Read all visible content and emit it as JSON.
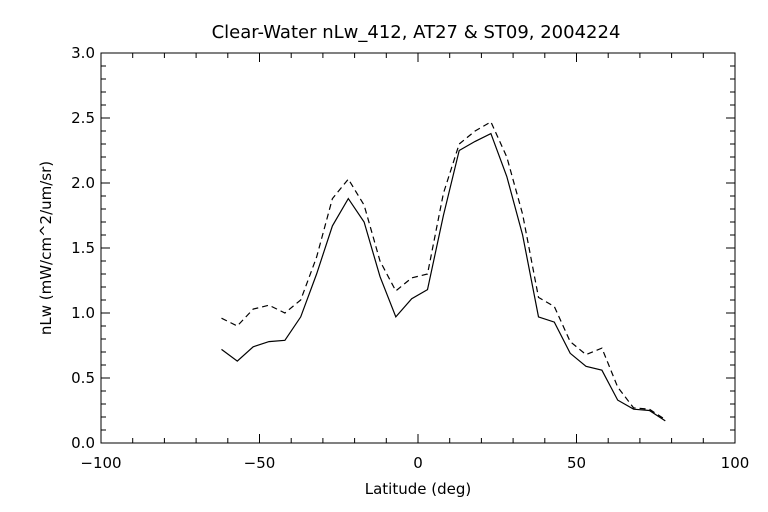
{
  "chart_data": {
    "type": "line",
    "title": "Clear-Water nLw_412, AT27 & ST09, 2004224",
    "xlabel": "Latitude (deg)",
    "ylabel": "nLw (mW/cm^2/um/sr)",
    "xlim": [
      -100,
      100
    ],
    "ylim": [
      0.0,
      3.0
    ],
    "xticks": [
      -100,
      -50,
      0,
      50,
      100
    ],
    "yticks": [
      0.0,
      0.5,
      1.0,
      1.5,
      2.0,
      2.5,
      3.0
    ],
    "xtick_labels": [
      "−100",
      "−50",
      "0",
      "50",
      "100"
    ],
    "ytick_labels": [
      "0.0",
      "0.5",
      "1.0",
      "1.5",
      "2.0",
      "2.5",
      "3.0"
    ],
    "grid": false,
    "colors": {
      "line": "#000000",
      "axes": "#000000",
      "background": "#ffffff"
    },
    "series": [
      {
        "style": "solid",
        "x": [
          -62,
          -57,
          -52,
          -47,
          -42,
          -37,
          -32,
          -27,
          -22,
          -17,
          -12,
          -7,
          -2,
          3,
          8,
          13,
          18,
          23,
          28,
          33,
          38,
          43,
          48,
          53,
          58,
          63,
          68,
          73,
          78
        ],
        "y": [
          0.72,
          0.63,
          0.74,
          0.78,
          0.79,
          0.97,
          1.3,
          1.67,
          1.88,
          1.7,
          1.28,
          0.97,
          1.11,
          1.18,
          1.75,
          2.25,
          2.32,
          2.38,
          2.05,
          1.6,
          0.97,
          0.93,
          0.69,
          0.59,
          0.56,
          0.33,
          0.26,
          0.25,
          0.17
        ]
      },
      {
        "style": "dashed",
        "x": [
          -62,
          -57,
          -52,
          -47,
          -42,
          -37,
          -32,
          -27,
          -22,
          -17,
          -12,
          -7,
          -2,
          3,
          8,
          13,
          18,
          23,
          28,
          33,
          38,
          43,
          48,
          53,
          58,
          63,
          68,
          73,
          78
        ],
        "y": [
          0.96,
          0.9,
          1.03,
          1.06,
          1.0,
          1.1,
          1.43,
          1.88,
          2.03,
          1.83,
          1.4,
          1.17,
          1.27,
          1.3,
          1.92,
          2.3,
          2.4,
          2.47,
          2.2,
          1.76,
          1.12,
          1.05,
          0.78,
          0.68,
          0.73,
          0.43,
          0.27,
          0.26,
          0.18
        ]
      }
    ]
  }
}
